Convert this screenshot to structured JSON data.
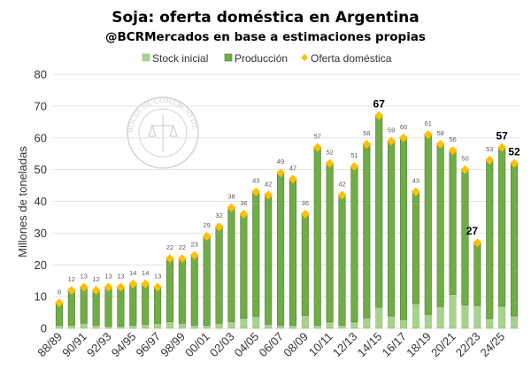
{
  "chart_data": {
    "type": "bar",
    "stacked": true,
    "title": "Soja: oferta doméstica en Argentina",
    "subtitle": "@BCRMercados en base a estimaciones propias",
    "ylabel": "Millones de toneladas",
    "xlabel": "",
    "ylim": [
      0,
      80
    ],
    "yticks": [
      0,
      10,
      20,
      30,
      40,
      50,
      60,
      70,
      80
    ],
    "grid": true,
    "legend_position": "top",
    "categories": [
      "88/89",
      "89/90",
      "90/91",
      "91/92",
      "92/93",
      "93/94",
      "94/95",
      "95/96",
      "96/97",
      "97/98",
      "98/99",
      "99/00",
      "00/01",
      "01/02",
      "02/03",
      "03/04",
      "04/05",
      "05/06",
      "06/07",
      "07/08",
      "08/09",
      "09/10",
      "10/11",
      "11/12",
      "12/13",
      "13/14",
      "14/15",
      "15/16",
      "16/17",
      "17/18",
      "18/19",
      "19/20",
      "20/21",
      "21/22",
      "22/23",
      "23/24",
      "24/25",
      "25/26"
    ],
    "x_tick_labels_shown_every": 2,
    "series": [
      {
        "name": "Stock inicial",
        "kind": "bar",
        "color": "#a9d18e",
        "values": [
          1,
          1,
          1.6,
          1,
          0.7,
          0.7,
          1,
          1.3,
          1.6,
          2.1,
          1.6,
          1,
          1,
          1.6,
          2.1,
          3.2,
          3.8,
          1.3,
          1,
          1,
          4.1,
          1,
          2,
          1,
          2,
          3.3,
          6.7,
          3.9,
          2.8,
          7.8,
          4.4,
          6.9,
          10.7,
          7.4,
          7.2,
          3.1,
          7,
          3.9
        ]
      },
      {
        "name": "Producción",
        "kind": "bar",
        "color": "#70ad47",
        "values": [
          7,
          11,
          11.4,
          11,
          12.3,
          12.3,
          13,
          12.7,
          11.4,
          19.9,
          20.4,
          22,
          28,
          30.4,
          35.9,
          32.8,
          39.2,
          40.7,
          48,
          46,
          31.9,
          56,
          50,
          41,
          49,
          54.7,
          60.3,
          55.1,
          57.2,
          35.2,
          56.6,
          51.1,
          45.3,
          42.6,
          19.8,
          49.9,
          50,
          48.1
        ]
      },
      {
        "name": "Oferta doméstica",
        "kind": "marker",
        "color": "#ffc000",
        "values": [
          8,
          12,
          13,
          12,
          13,
          13,
          14,
          14,
          13,
          22,
          22,
          23,
          29,
          32,
          38,
          36,
          43,
          42,
          49,
          47,
          36,
          57,
          52,
          42,
          51,
          58,
          67,
          59,
          60,
          43,
          61,
          58,
          56,
          50,
          27,
          53,
          57,
          52
        ],
        "bold_labels": [
          "14/15",
          "22/23",
          "24/25",
          "25/26"
        ]
      }
    ]
  },
  "watermark": {
    "logo_text": "BOLSA DE COMERCIO DE ROSARIO"
  }
}
